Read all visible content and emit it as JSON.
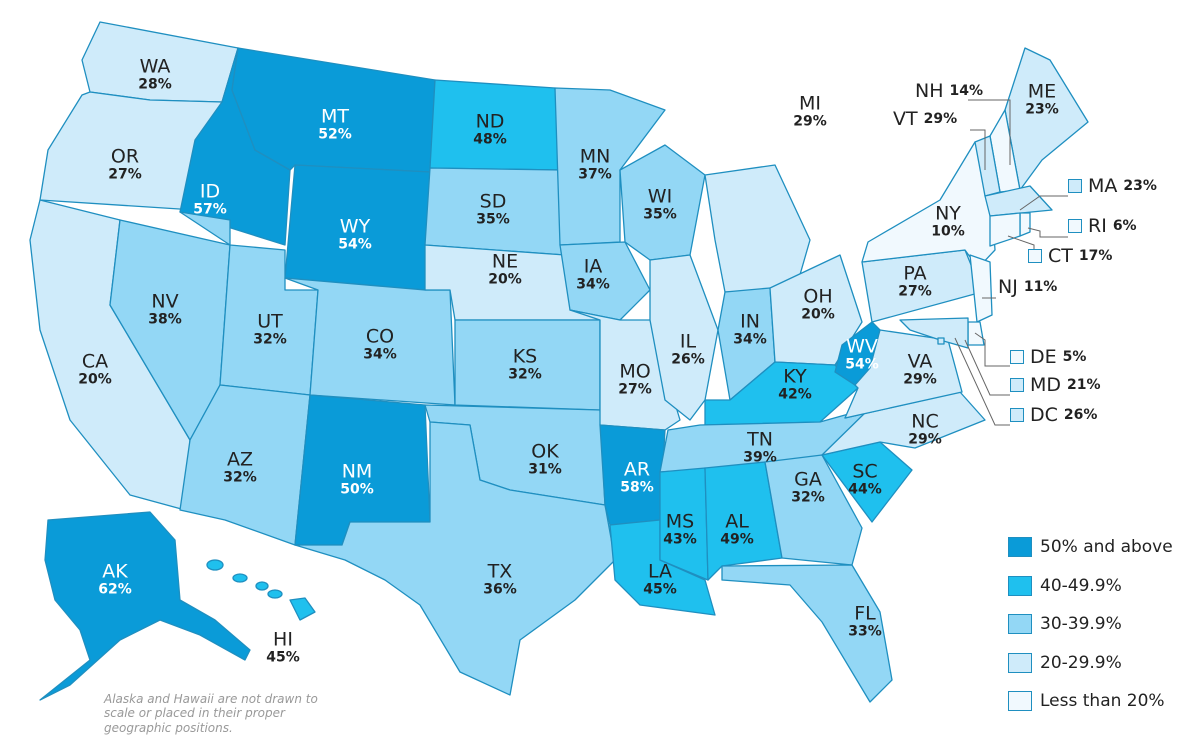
{
  "colors": {
    "50+": "#0a9bd8",
    "40-49.9": "#1fc0ee",
    "30-39.9": "#93d7f5",
    "20-29.9": "#cfebfa",
    "lt20": "#f1f9fe",
    "border": "#1f8fc0"
  },
  "states": [
    {
      "abbr": "WA",
      "value": "28%",
      "cat": "20-29.9"
    },
    {
      "abbr": "OR",
      "value": "27%",
      "cat": "20-29.9"
    },
    {
      "abbr": "CA",
      "value": "20%",
      "cat": "20-29.9"
    },
    {
      "abbr": "ID",
      "value": "57%",
      "cat": "50+"
    },
    {
      "abbr": "NV",
      "value": "38%",
      "cat": "30-39.9"
    },
    {
      "abbr": "MT",
      "value": "52%",
      "cat": "50+"
    },
    {
      "abbr": "WY",
      "value": "54%",
      "cat": "50+"
    },
    {
      "abbr": "UT",
      "value": "32%",
      "cat": "30-39.9"
    },
    {
      "abbr": "AZ",
      "value": "32%",
      "cat": "30-39.9"
    },
    {
      "abbr": "CO",
      "value": "34%",
      "cat": "30-39.9"
    },
    {
      "abbr": "NM",
      "value": "50%",
      "cat": "50+"
    },
    {
      "abbr": "ND",
      "value": "48%",
      "cat": "40-49.9"
    },
    {
      "abbr": "SD",
      "value": "35%",
      "cat": "30-39.9"
    },
    {
      "abbr": "NE",
      "value": "20%",
      "cat": "20-29.9"
    },
    {
      "abbr": "KS",
      "value": "32%",
      "cat": "30-39.9"
    },
    {
      "abbr": "OK",
      "value": "31%",
      "cat": "30-39.9"
    },
    {
      "abbr": "TX",
      "value": "36%",
      "cat": "30-39.9"
    },
    {
      "abbr": "MN",
      "value": "37%",
      "cat": "30-39.9"
    },
    {
      "abbr": "IA",
      "value": "34%",
      "cat": "30-39.9"
    },
    {
      "abbr": "MO",
      "value": "27%",
      "cat": "20-29.9"
    },
    {
      "abbr": "AR",
      "value": "58%",
      "cat": "50+"
    },
    {
      "abbr": "LA",
      "value": "45%",
      "cat": "40-49.9"
    },
    {
      "abbr": "WI",
      "value": "35%",
      "cat": "30-39.9"
    },
    {
      "abbr": "IL",
      "value": "26%",
      "cat": "20-29.9"
    },
    {
      "abbr": "MI",
      "value": "29%",
      "cat": "20-29.9"
    },
    {
      "abbr": "IN",
      "value": "34%",
      "cat": "30-39.9"
    },
    {
      "abbr": "OH",
      "value": "20%",
      "cat": "20-29.9"
    },
    {
      "abbr": "KY",
      "value": "42%",
      "cat": "40-49.9"
    },
    {
      "abbr": "TN",
      "value": "39%",
      "cat": "30-39.9"
    },
    {
      "abbr": "MS",
      "value": "43%",
      "cat": "40-49.9"
    },
    {
      "abbr": "AL",
      "value": "49%",
      "cat": "40-49.9"
    },
    {
      "abbr": "GA",
      "value": "32%",
      "cat": "30-39.9"
    },
    {
      "abbr": "FL",
      "value": "33%",
      "cat": "30-39.9"
    },
    {
      "abbr": "SC",
      "value": "44%",
      "cat": "40-49.9"
    },
    {
      "abbr": "NC",
      "value": "29%",
      "cat": "20-29.9"
    },
    {
      "abbr": "VA",
      "value": "29%",
      "cat": "20-29.9"
    },
    {
      "abbr": "WV",
      "value": "54%",
      "cat": "50+"
    },
    {
      "abbr": "PA",
      "value": "27%",
      "cat": "20-29.9"
    },
    {
      "abbr": "NY",
      "value": "10%",
      "cat": "lt20"
    },
    {
      "abbr": "ME",
      "value": "23%",
      "cat": "20-29.9"
    },
    {
      "abbr": "AK",
      "value": "62%",
      "cat": "50+"
    },
    {
      "abbr": "HI",
      "value": "45%",
      "cat": "40-49.9"
    }
  ],
  "callouts": [
    {
      "abbr": "NH",
      "value": "14%",
      "cat": "lt20"
    },
    {
      "abbr": "VT",
      "value": "29%",
      "cat": "20-29.9"
    },
    {
      "abbr": "MA",
      "value": "23%",
      "cat": "20-29.9"
    },
    {
      "abbr": "RI",
      "value": "6%",
      "cat": "lt20"
    },
    {
      "abbr": "CT",
      "value": "17%",
      "cat": "lt20"
    },
    {
      "abbr": "NJ",
      "value": "11%",
      "cat": "lt20"
    },
    {
      "abbr": "DE",
      "value": "5%",
      "cat": "lt20"
    },
    {
      "abbr": "MD",
      "value": "21%",
      "cat": "20-29.9"
    },
    {
      "abbr": "DC",
      "value": "26%",
      "cat": "20-29.9"
    }
  ],
  "legend": [
    {
      "label": "50% and above",
      "cat": "50+"
    },
    {
      "label": "40-49.9%",
      "cat": "40-49.9"
    },
    {
      "label": "30-39.9%",
      "cat": "30-39.9"
    },
    {
      "label": "20-29.9%",
      "cat": "20-29.9"
    },
    {
      "label": "Less than 20%",
      "cat": "lt20"
    }
  ],
  "note": "Alaska and Hawaii are not drawn to scale or placed in their proper geographic positions."
}
